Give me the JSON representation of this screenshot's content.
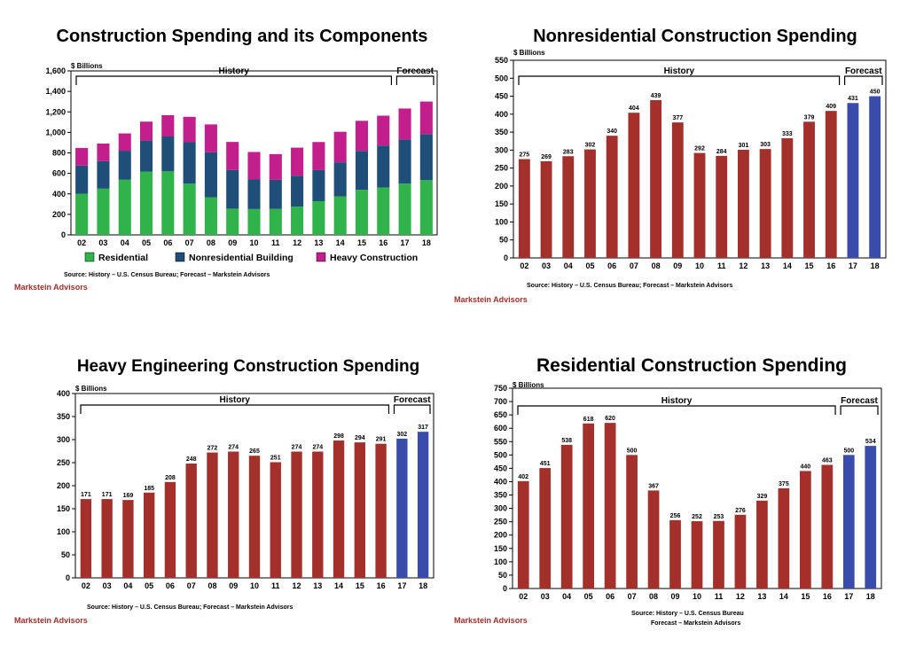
{
  "colors": {
    "residential": "#2fb34a",
    "nonresidential": "#1f4e79",
    "heavy": "#c21f8c",
    "history_bar": "#a3302a",
    "forecast_bar": "#3a4cab",
    "brand": "#a3302a"
  },
  "chart_data": [
    {
      "id": "components",
      "type": "bar",
      "stacked": true,
      "title": "Construction Spending and its Components",
      "unit_label": "$ Billions",
      "categories": [
        "02",
        "03",
        "04",
        "05",
        "06",
        "07",
        "08",
        "09",
        "10",
        "11",
        "12",
        "13",
        "14",
        "15",
        "16",
        "17",
        "18"
      ],
      "series": [
        {
          "name": "Residential",
          "values": [
            402,
            451,
            538,
            618,
            620,
            500,
            367,
            256,
            252,
            253,
            276,
            329,
            375,
            440,
            463,
            500,
            534
          ]
        },
        {
          "name": "Nonresidential Building",
          "values": [
            275,
            269,
            283,
            302,
            340,
            404,
            439,
            377,
            292,
            284,
            301,
            303,
            333,
            379,
            409,
            431,
            450
          ]
        },
        {
          "name": "Heavy Construction",
          "values": [
            171,
            171,
            169,
            185,
            208,
            248,
            272,
            274,
            265,
            251,
            274,
            274,
            298,
            294,
            291,
            302,
            317
          ]
        }
      ],
      "ylim": [
        0,
        1600
      ],
      "yticks": [
        "0",
        "200",
        "400",
        "600",
        "800",
        "1,000",
        "1,200",
        "1,400",
        "1,600"
      ],
      "history_label": "History",
      "forecast_label": "Forecast",
      "forecast_start_index": 15,
      "legend_position": "bottom",
      "source": "Source:  History – U.S. Census Bureau;  Forecast – Markstein Advisors",
      "brand": "Markstein Advisors"
    },
    {
      "id": "nonresidential",
      "type": "bar",
      "title": "Nonresidential Construction Spending",
      "unit_label": "$ Billions",
      "categories": [
        "02",
        "03",
        "04",
        "05",
        "06",
        "07",
        "08",
        "09",
        "10",
        "11",
        "12",
        "13",
        "14",
        "15",
        "16",
        "17",
        "18"
      ],
      "values": [
        275,
        269,
        283,
        302,
        340,
        404,
        439,
        377,
        292,
        284,
        301,
        303,
        333,
        379,
        409,
        431,
        450
      ],
      "ylim": [
        0,
        550
      ],
      "yticks": [
        "0",
        "50",
        "100",
        "150",
        "200",
        "250",
        "300",
        "350",
        "400",
        "450",
        "500",
        "550"
      ],
      "history_label": "History",
      "forecast_label": "Forecast",
      "forecast_start_index": 15,
      "source": "Source:  History – U.S. Census Bureau;  Forecast – Markstein Advisors",
      "brand": "Markstein Advisors"
    },
    {
      "id": "heavy",
      "type": "bar",
      "title": "Heavy Engineering Construction Spending",
      "unit_label": "$ Billions",
      "categories": [
        "02",
        "03",
        "04",
        "05",
        "06",
        "07",
        "08",
        "09",
        "10",
        "11",
        "12",
        "13",
        "14",
        "15",
        "16",
        "17",
        "18"
      ],
      "values": [
        171,
        171,
        169,
        185,
        208,
        248,
        272,
        274,
        265,
        251,
        274,
        274,
        298,
        294,
        291,
        302,
        317
      ],
      "ylim": [
        0,
        400
      ],
      "yticks": [
        "0",
        "50",
        "100",
        "150",
        "200",
        "250",
        "300",
        "350",
        "400"
      ],
      "history_label": "History",
      "forecast_label": "Forecast",
      "forecast_start_index": 15,
      "source": "Source:  History – U.S. Census Bureau;  Forecast – Markstein Advisors",
      "brand": "Markstein Advisors"
    },
    {
      "id": "residential",
      "type": "bar",
      "title": "Residential Construction Spending",
      "unit_label": "$ Billions",
      "categories": [
        "02",
        "03",
        "04",
        "05",
        "06",
        "07",
        "08",
        "09",
        "10",
        "11",
        "12",
        "13",
        "14",
        "15",
        "16",
        "17",
        "18"
      ],
      "values": [
        402,
        451,
        538,
        618,
        620,
        500,
        367,
        256,
        252,
        253,
        276,
        329,
        375,
        440,
        463,
        500,
        534
      ],
      "ylim": [
        0,
        750
      ],
      "yticks": [
        "0",
        "50",
        "100",
        "150",
        "200",
        "250",
        "300",
        "350",
        "400",
        "450",
        "500",
        "550",
        "600",
        "650",
        "700",
        "750"
      ],
      "history_label": "History",
      "forecast_label": "Forecast",
      "forecast_start_index": 15,
      "source": "Source:  History – U.S. Census Bureau",
      "source2": "Forecast – Markstein Advisors",
      "brand": "Markstein Advisors"
    }
  ]
}
